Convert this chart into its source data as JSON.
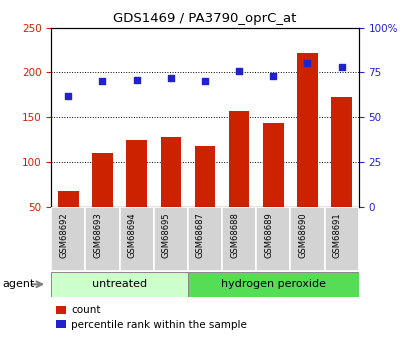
{
  "title": "GDS1469 / PA3790_oprC_at",
  "categories": [
    "GSM68692",
    "GSM68693",
    "GSM68694",
    "GSM68695",
    "GSM68687",
    "GSM68688",
    "GSM68689",
    "GSM68690",
    "GSM68691"
  ],
  "bar_values": [
    68,
    110,
    125,
    128,
    118,
    157,
    144,
    222,
    173
  ],
  "dot_values": [
    62,
    70,
    71,
    72,
    70,
    76,
    73,
    80,
    78
  ],
  "untreated_count": 4,
  "hydrogen_count": 5,
  "bar_color": "#cc2200",
  "dot_color": "#2222cc",
  "yleft_min": 50,
  "yleft_max": 250,
  "yleft_ticks": [
    50,
    100,
    150,
    200,
    250
  ],
  "yright_min": 0,
  "yright_max": 100,
  "yright_ticks": [
    0,
    25,
    50,
    75,
    100
  ],
  "yright_labels": [
    "0",
    "25",
    "50",
    "75",
    "100%"
  ],
  "untreated_color": "#ccffcc",
  "hydrogen_color": "#55dd55",
  "agent_label": "agent",
  "untreated_label": "untreated",
  "hydrogen_label": "hydrogen peroxide",
  "legend_count": "count",
  "legend_pct": "percentile rank within the sample",
  "tick_bg_color": "#d3d3d3",
  "tick_edge_color": "#ffffff"
}
